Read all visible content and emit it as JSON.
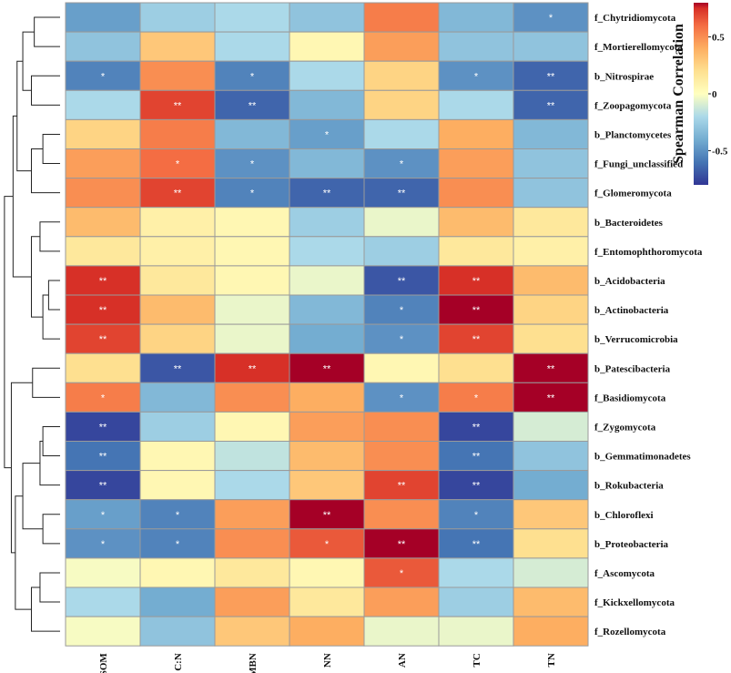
{
  "chart_data": {
    "type": "heatmap",
    "title": "",
    "columns": [
      "SOM",
      "C:N",
      "MBN",
      "NN",
      "AN",
      "TC",
      "TN"
    ],
    "rows": [
      "f_Chytridiomycota",
      "f_Mortierellomycota",
      "b_Nitrospirae",
      "f_Zoopagomycota",
      "b_Planctomycetes",
      "f_Fungi_unclassified",
      "f_Glomeromycota",
      "b_Bacteroidetes",
      "f_Entomophthoromycota",
      "b_Acidobacteria",
      "b_Actinobacteria",
      "b_Verrucomicrobia",
      "b_Patescibacteria",
      "f_Basidiomycota",
      "f_Zygomycota",
      "b_Gemmatimonadetes",
      "b_Rokubacteria",
      "b_Chloroflexi",
      "b_Proteobacteria",
      "f_Ascomycota",
      "f_Kickxellomycota",
      "f_Rozellomycota"
    ],
    "values": [
      [
        -0.45,
        -0.25,
        -0.2,
        -0.3,
        0.55,
        -0.35,
        -0.5
      ],
      [
        -0.3,
        0.3,
        -0.2,
        0.05,
        0.45,
        -0.3,
        -0.3
      ],
      [
        -0.55,
        0.5,
        -0.55,
        -0.2,
        0.25,
        -0.5,
        -0.65
      ],
      [
        -0.2,
        0.7,
        -0.65,
        -0.35,
        0.25,
        -0.2,
        -0.65
      ],
      [
        0.25,
        0.55,
        -0.35,
        -0.45,
        -0.2,
        0.4,
        -0.35
      ],
      [
        0.45,
        0.6,
        -0.5,
        -0.35,
        -0.5,
        0.45,
        -0.3
      ],
      [
        0.5,
        0.7,
        -0.55,
        -0.65,
        -0.65,
        0.5,
        -0.3
      ],
      [
        0.35,
        0.1,
        0.05,
        -0.25,
        -0.05,
        0.35,
        0.15
      ],
      [
        0.15,
        0.1,
        0.05,
        -0.2,
        -0.25,
        0.15,
        0.1
      ],
      [
        0.75,
        0.15,
        0.05,
        -0.05,
        -0.7,
        0.75,
        0.35
      ],
      [
        0.75,
        0.35,
        -0.05,
        -0.35,
        -0.55,
        0.8,
        0.25
      ],
      [
        0.7,
        0.25,
        -0.05,
        -0.4,
        -0.5,
        0.7,
        0.2
      ],
      [
        0.2,
        -0.7,
        0.75,
        0.8,
        0.05,
        0.2,
        0.8
      ],
      [
        0.55,
        -0.35,
        0.5,
        0.4,
        -0.5,
        0.55,
        0.8
      ],
      [
        -0.75,
        -0.25,
        0.05,
        0.45,
        0.5,
        -0.75,
        -0.1
      ],
      [
        -0.6,
        0.05,
        -0.15,
        0.35,
        0.5,
        -0.6,
        -0.3
      ],
      [
        -0.75,
        0.05,
        -0.2,
        0.3,
        0.7,
        -0.75,
        -0.4
      ],
      [
        -0.45,
        -0.55,
        0.45,
        0.8,
        0.5,
        -0.55,
        0.3
      ],
      [
        -0.5,
        -0.55,
        0.5,
        0.65,
        0.8,
        -0.6,
        0.2
      ],
      [
        -0.02,
        0.05,
        0.15,
        0.05,
        0.65,
        -0.2,
        -0.1
      ],
      [
        -0.2,
        -0.4,
        0.45,
        0.15,
        0.45,
        -0.25,
        0.35
      ],
      [
        -0.02,
        -0.3,
        0.3,
        0.4,
        -0.05,
        -0.05,
        0.4
      ]
    ],
    "significance": [
      [
        "",
        "",
        "",
        "",
        "",
        "",
        "*"
      ],
      [
        "",
        "",
        "",
        "",
        "",
        "",
        ""
      ],
      [
        "*",
        "",
        "*",
        "",
        "",
        "*",
        "**"
      ],
      [
        "",
        "**",
        "**",
        "",
        "",
        "",
        "**"
      ],
      [
        "",
        "",
        "",
        "*",
        "",
        "",
        ""
      ],
      [
        "",
        "*",
        "*",
        "",
        "*",
        "",
        ""
      ],
      [
        "",
        "**",
        "*",
        "**",
        "**",
        "",
        ""
      ],
      [
        "",
        "",
        "",
        "",
        "",
        "",
        ""
      ],
      [
        "",
        "",
        "",
        "",
        "",
        "",
        ""
      ],
      [
        "**",
        "",
        "",
        "",
        "**",
        "**",
        ""
      ],
      [
        "**",
        "",
        "",
        "",
        "*",
        "**",
        ""
      ],
      [
        "**",
        "",
        "",
        "",
        "*",
        "**",
        ""
      ],
      [
        "",
        "**",
        "**",
        "**",
        "",
        "",
        "**"
      ],
      [
        "*",
        "",
        "",
        "",
        "*",
        "*",
        "**"
      ],
      [
        "**",
        "",
        "",
        "",
        "",
        "**",
        ""
      ],
      [
        "**",
        "",
        "",
        "",
        "",
        "**",
        ""
      ],
      [
        "**",
        "",
        "",
        "",
        "**",
        "**",
        ""
      ],
      [
        "*",
        "*",
        "",
        "**",
        "",
        "*",
        ""
      ],
      [
        "*",
        "*",
        "",
        "*",
        "**",
        "**",
        ""
      ],
      [
        "",
        "",
        "",
        "",
        "*",
        "",
        ""
      ],
      [
        "",
        "",
        "",
        "",
        "",
        "",
        ""
      ],
      [
        "",
        "",
        "",
        "",
        "",
        "",
        ""
      ]
    ],
    "colorbar": {
      "label": "Spearman Correlation",
      "range": [
        -0.8,
        0.8
      ],
      "ticks": [
        0.5,
        0,
        -0.5
      ],
      "tick_labels": [
        "0.5",
        "0",
        "-0.5"
      ],
      "colors": [
        "#313695",
        "#4575b4",
        "#74add1",
        "#abd9e9",
        "#fee090",
        "#fdae61",
        "#f46d43",
        "#d73027",
        "#a50026"
      ],
      "mid_color": "#ffffbf"
    },
    "dendrogram": {
      "side": "left",
      "merges": [
        [
          0,
          1,
          0.45
        ],
        [
          2,
          3,
          0.5
        ],
        [
          22,
          23,
          0.65
        ],
        [
          4,
          5,
          0.3
        ],
        [
          25,
          6,
          0.5
        ],
        [
          24,
          26,
          0.75
        ],
        [
          7,
          8,
          0.35
        ],
        [
          9,
          10,
          0.2
        ],
        [
          29,
          11,
          0.3
        ],
        [
          28,
          30,
          0.5
        ],
        [
          27,
          31,
          0.82
        ],
        [
          12,
          13,
          0.48
        ],
        [
          14,
          15,
          0.3
        ],
        [
          34,
          16,
          0.35
        ],
        [
          17,
          18,
          0.3
        ],
        [
          35,
          36,
          0.65
        ],
        [
          19,
          20,
          0.35
        ],
        [
          38,
          21,
          0.5
        ],
        [
          37,
          39,
          0.78
        ],
        [
          33,
          40,
          0.85
        ],
        [
          32,
          41,
          0.97
        ]
      ]
    }
  }
}
